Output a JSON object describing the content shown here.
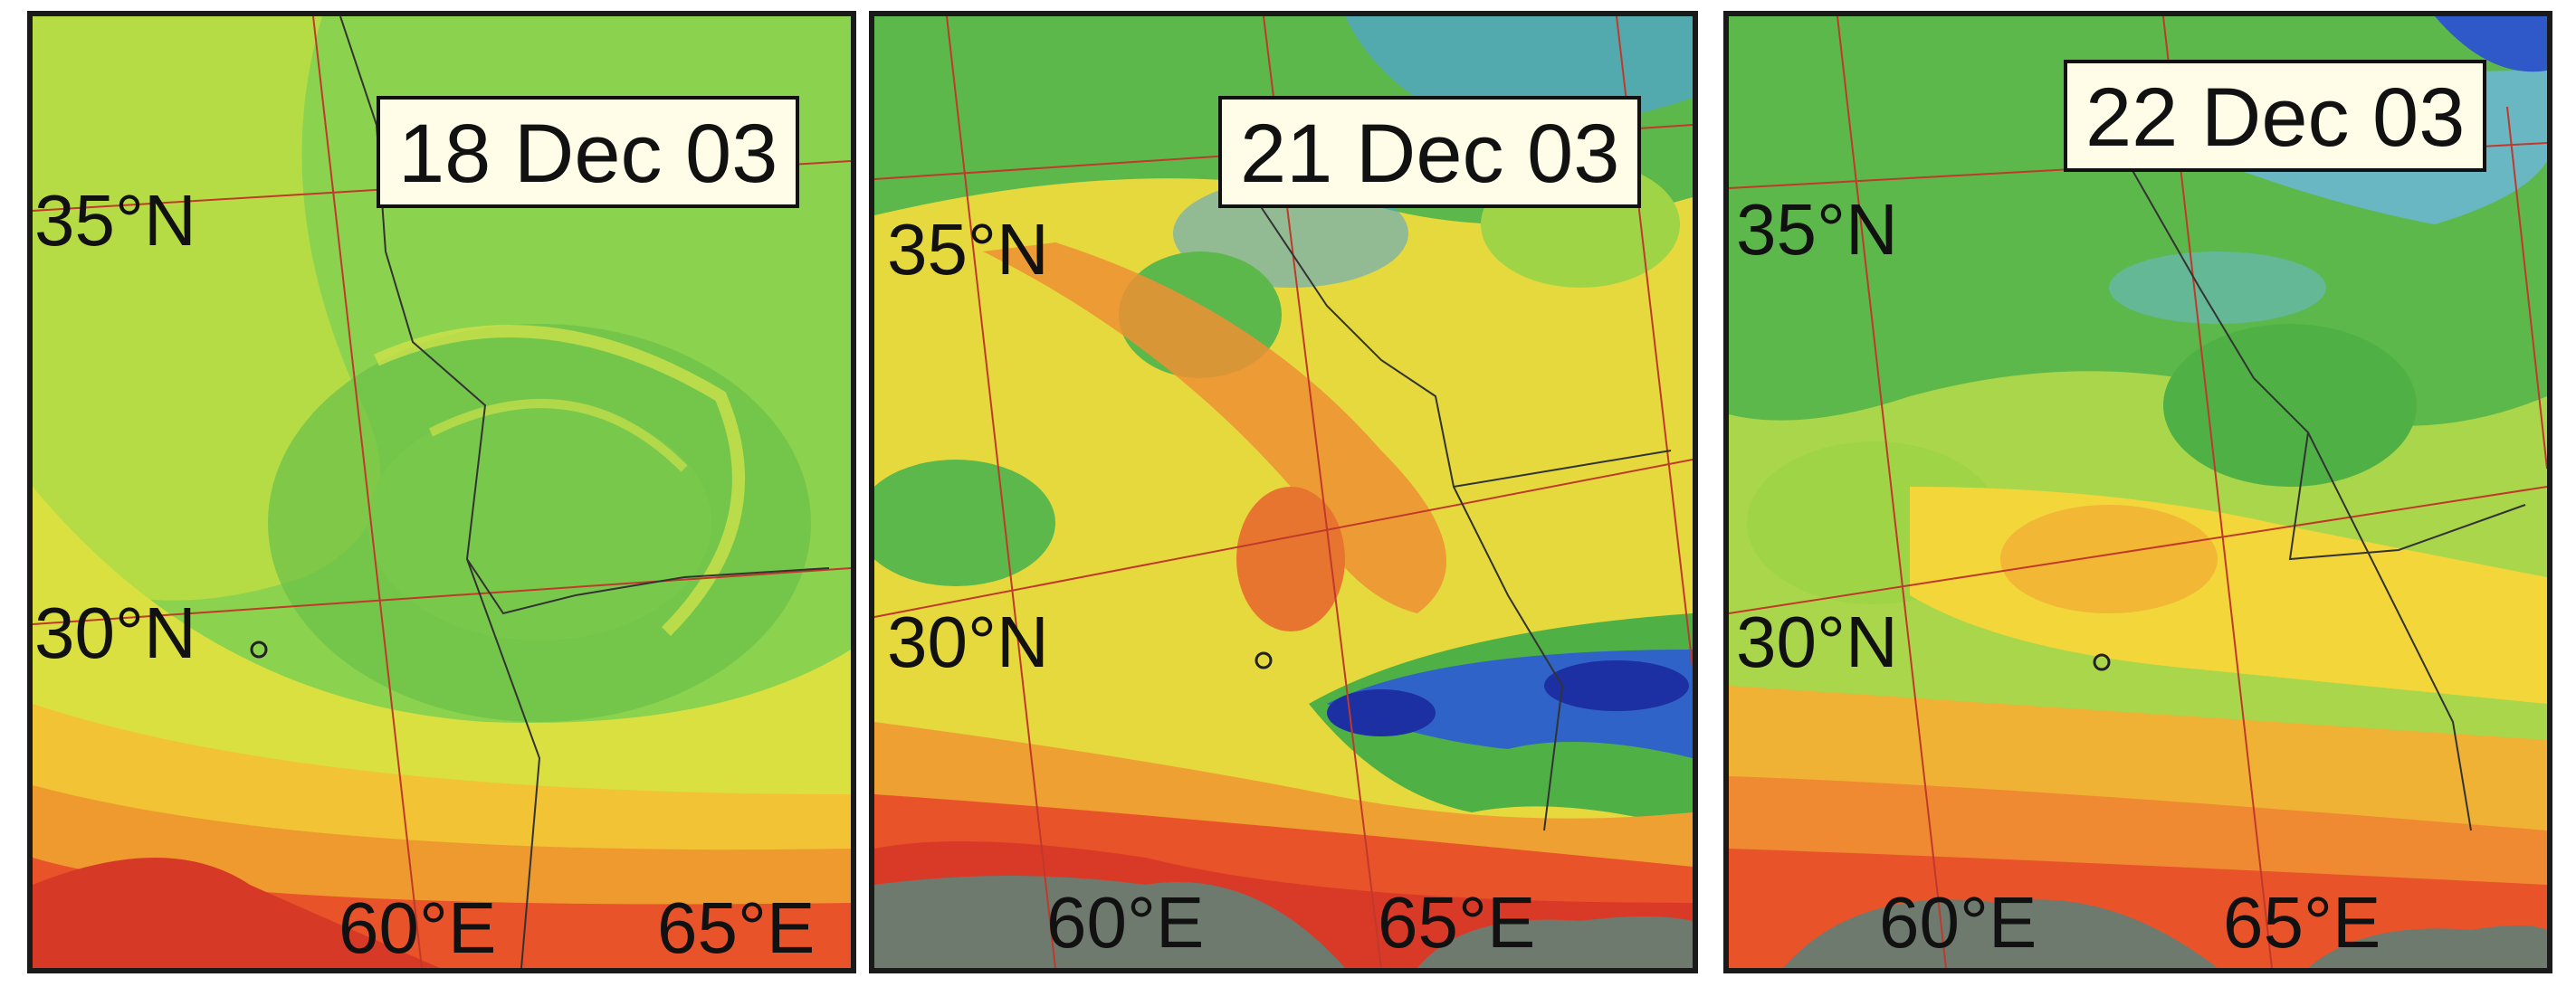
{
  "panels": [
    {
      "date": "18 Dec 03",
      "lat_labels": [
        "35°N",
        "30°N"
      ],
      "lon_labels": [
        "60°E",
        "65°E"
      ],
      "colors": {
        "base": "#7fcf52",
        "dust": "#f2e23a",
        "heavy_dust": "#f0a12e",
        "hot": "#e8402a",
        "cloud": "#4fa3d9",
        "cold_cloud": "#1f3fb0",
        "ocean": "#6e7a6e",
        "green": "#55b845"
      }
    },
    {
      "date": "21 Dec 03",
      "lat_labels": [
        "35°N",
        "30°N"
      ],
      "lon_labels": [
        "60°E",
        "65°E"
      ],
      "colors": {
        "base": "#e9d73d",
        "dust": "#f2e23a",
        "heavy_dust": "#ef8f34",
        "hot": "#e8402a",
        "cloud": "#4fa3d9",
        "cold_cloud": "#1f3fb0",
        "ocean": "#6e7a6e",
        "green": "#4fb145"
      }
    },
    {
      "date": "22 Dec 03",
      "lat_labels": [
        "35°N",
        "30°N"
      ],
      "lon_labels": [
        "60°E",
        "65°E"
      ],
      "colors": {
        "base": "#a5d64a",
        "dust": "#f2e23a",
        "heavy_dust": "#efa032",
        "hot": "#e8402a",
        "cloud": "#6cb7e0",
        "cold_cloud": "#2f58c8",
        "ocean": "#6e7a6e",
        "green": "#4fb145"
      }
    }
  ]
}
